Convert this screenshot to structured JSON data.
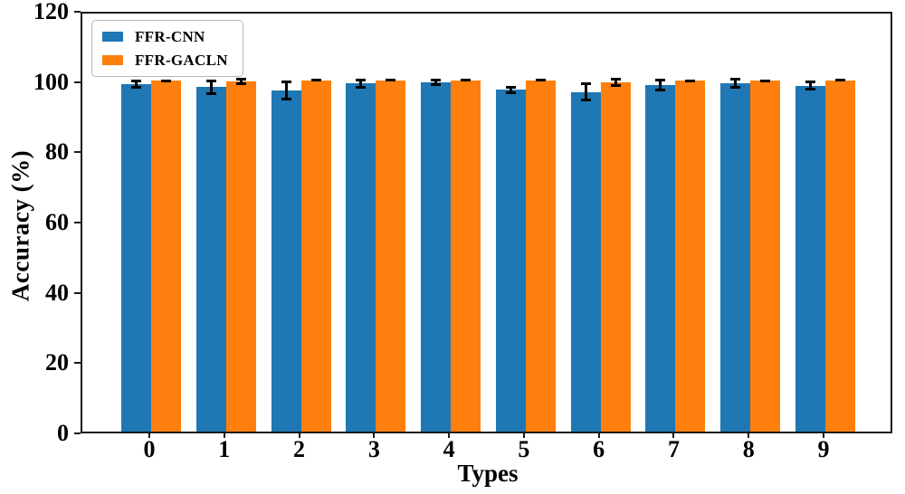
{
  "chart_data": {
    "type": "bar",
    "title": "",
    "xlabel": "Types",
    "ylabel": "Accuracy (%)",
    "categories": [
      "0",
      "1",
      "2",
      "3",
      "4",
      "5",
      "6",
      "7",
      "8",
      "9"
    ],
    "series": [
      {
        "name": "FFR-CNN",
        "color": "#1f77b4",
        "values": [
          99.0,
          98.0,
          97.1,
          99.1,
          99.4,
          97.3,
          96.6,
          98.6,
          99.1,
          98.5
        ],
        "errors": [
          1.3,
          2.3,
          2.9,
          1.4,
          1.0,
          1.2,
          2.7,
          1.9,
          1.6,
          1.3
        ]
      },
      {
        "name": "FFR-GACLN",
        "color": "#ff7f0e",
        "values": [
          99.9,
          99.7,
          99.9,
          99.9,
          99.9,
          99.9,
          99.5,
          99.8,
          99.8,
          99.9
        ],
        "errors": [
          0.4,
          1.1,
          0.3,
          0.3,
          0.3,
          0.3,
          1.3,
          0.3,
          0.3,
          0.3
        ]
      }
    ],
    "ylim": [
      0,
      120
    ],
    "yticks": [
      0,
      20,
      40,
      60,
      80,
      100,
      120
    ],
    "legend_position": "upper-left",
    "grid": false,
    "error_bar_color": "#000000"
  }
}
